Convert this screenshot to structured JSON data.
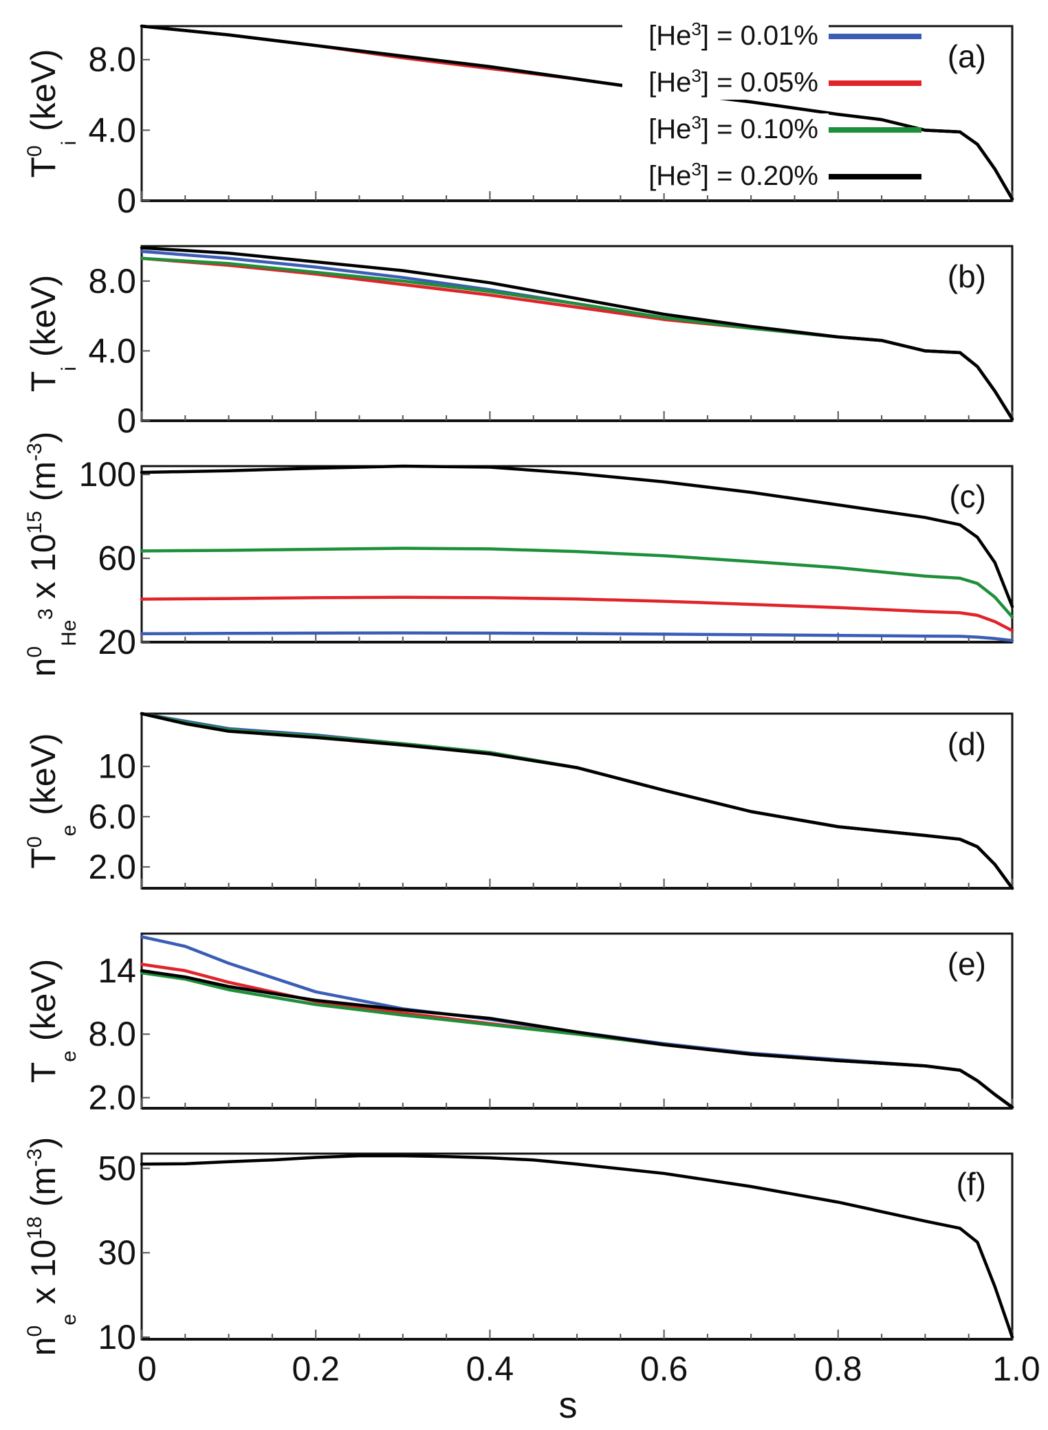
{
  "chart_data": [
    {
      "type": "line",
      "panel": "(a)",
      "ylim": [
        0,
        9.9
      ],
      "xlim": [
        0,
        1
      ],
      "yticks": [
        "0",
        "4.0",
        "8.0"
      ],
      "ytick_values": [
        0,
        4,
        8
      ],
      "ylabel": {
        "main": "T",
        "sup": "0",
        "sub": "i",
        "unit": " (keV)"
      },
      "series": [
        {
          "name": "[He3] = 0.01%",
          "color": "#3b5db5",
          "x": [
            0,
            0.1,
            0.2,
            0.3,
            0.4,
            0.5,
            0.6,
            0.7,
            0.8,
            0.85,
            0.9,
            0.94,
            0.96,
            0.98,
            1.0
          ],
          "y": [
            9.9,
            9.4,
            8.8,
            8.2,
            7.6,
            6.9,
            6.2,
            5.6,
            4.9,
            4.6,
            4.0,
            3.9,
            3.2,
            1.8,
            0.1
          ]
        },
        {
          "name": "[He3] = 0.05%",
          "color": "#e0242a",
          "x": [
            0,
            0.1,
            0.2,
            0.3,
            0.4,
            0.5,
            0.6,
            0.7,
            0.8,
            0.85,
            0.9,
            0.94,
            0.96,
            0.98,
            1.0
          ],
          "y": [
            9.9,
            9.4,
            8.8,
            8.1,
            7.5,
            6.9,
            6.2,
            5.6,
            4.9,
            4.6,
            4.0,
            3.9,
            3.2,
            1.8,
            0.1
          ]
        },
        {
          "name": "[He3] = 0.10%",
          "color": "#1e8f3a",
          "x": [
            0,
            0.1,
            0.2,
            0.3,
            0.4,
            0.5,
            0.6,
            0.7,
            0.8,
            0.85,
            0.9,
            0.94,
            0.96,
            0.98,
            1.0
          ],
          "y": [
            9.9,
            9.4,
            8.8,
            8.2,
            7.6,
            6.9,
            6.2,
            5.6,
            4.9,
            4.6,
            4.0,
            3.9,
            3.2,
            1.8,
            0.1
          ]
        },
        {
          "name": "[He3] = 0.20%",
          "color": "#000000",
          "x": [
            0,
            0.1,
            0.2,
            0.3,
            0.4,
            0.5,
            0.6,
            0.7,
            0.8,
            0.85,
            0.9,
            0.94,
            0.96,
            0.98,
            1.0
          ],
          "y": [
            9.9,
            9.4,
            8.8,
            8.2,
            7.6,
            6.9,
            6.2,
            5.6,
            4.9,
            4.6,
            4.0,
            3.9,
            3.2,
            1.8,
            0.1
          ]
        }
      ]
    },
    {
      "type": "line",
      "panel": "(b)",
      "ylim": [
        0,
        10.0
      ],
      "xlim": [
        0,
        1
      ],
      "yticks": [
        "0",
        "4.0",
        "8.0"
      ],
      "ytick_values": [
        0,
        4,
        8
      ],
      "ylabel": {
        "main": "T",
        "sup": "",
        "sub": "i",
        "unit": " (keV)"
      },
      "series": [
        {
          "name": "[He3] = 0.01%",
          "color": "#3b5db5",
          "x": [
            0,
            0.1,
            0.2,
            0.3,
            0.4,
            0.5,
            0.6,
            0.7,
            0.8,
            0.85,
            0.9,
            0.94,
            0.96,
            0.98,
            1.0
          ],
          "y": [
            9.7,
            9.3,
            8.8,
            8.2,
            7.5,
            6.7,
            5.9,
            5.3,
            4.8,
            4.6,
            4.0,
            3.9,
            3.1,
            1.7,
            0.1
          ]
        },
        {
          "name": "[He3] = 0.05%",
          "color": "#e0242a",
          "x": [
            0,
            0.1,
            0.2,
            0.3,
            0.4,
            0.5,
            0.6,
            0.7,
            0.8,
            0.85,
            0.9,
            0.94,
            0.96,
            0.98,
            1.0
          ],
          "y": [
            9.3,
            8.9,
            8.4,
            7.8,
            7.2,
            6.5,
            5.8,
            5.3,
            4.8,
            4.6,
            4.0,
            3.9,
            3.1,
            1.7,
            0.1
          ]
        },
        {
          "name": "[He3] = 0.10%",
          "color": "#1e8f3a",
          "x": [
            0,
            0.1,
            0.2,
            0.3,
            0.4,
            0.5,
            0.6,
            0.7,
            0.8,
            0.85,
            0.9,
            0.94,
            0.96,
            0.98,
            1.0
          ],
          "y": [
            9.3,
            9.0,
            8.5,
            8.0,
            7.4,
            6.7,
            5.9,
            5.3,
            4.8,
            4.6,
            4.0,
            3.9,
            3.1,
            1.7,
            0.1
          ]
        },
        {
          "name": "[He3] = 0.20%",
          "color": "#000000",
          "x": [
            0,
            0.1,
            0.2,
            0.3,
            0.4,
            0.5,
            0.6,
            0.7,
            0.8,
            0.85,
            0.9,
            0.94,
            0.96,
            0.98,
            1.0
          ],
          "y": [
            9.9,
            9.6,
            9.1,
            8.6,
            7.9,
            7.0,
            6.1,
            5.4,
            4.8,
            4.6,
            4.0,
            3.9,
            3.1,
            1.7,
            0.1
          ]
        }
      ]
    },
    {
      "type": "line",
      "panel": "(c)",
      "ylim": [
        20,
        104
      ],
      "xlim": [
        0,
        1
      ],
      "yticks": [
        "20",
        "60",
        "100"
      ],
      "ytick_values": [
        20,
        60,
        100
      ],
      "ylabel": {
        "main": "n",
        "sup": "0",
        "sub": "He",
        "extra_sup": "3",
        "tail": " x 10",
        "tail_sup": "15",
        "unit": " (m",
        "unit_sup": "-3",
        "unit_end": ")"
      },
      "series": [
        {
          "name": "[He3] = 0.01%",
          "color": "#3b5db5",
          "x": [
            0,
            0.1,
            0.2,
            0.3,
            0.4,
            0.5,
            0.6,
            0.7,
            0.8,
            0.9,
            0.94,
            0.96,
            0.98,
            1.0
          ],
          "y": [
            24,
            24.2,
            24.3,
            24.4,
            24.3,
            24.1,
            23.8,
            23.5,
            23.2,
            22.9,
            22.8,
            22.4,
            21.7,
            20.8
          ]
        },
        {
          "name": "[He3] = 0.05%",
          "color": "#e0242a",
          "x": [
            0,
            0.1,
            0.2,
            0.3,
            0.4,
            0.5,
            0.6,
            0.7,
            0.8,
            0.9,
            0.94,
            0.96,
            0.98,
            1.0
          ],
          "y": [
            40.5,
            40.8,
            41.2,
            41.4,
            41.2,
            40.6,
            39.5,
            38.0,
            36.5,
            34.6,
            34.0,
            32.8,
            29.8,
            25.5
          ]
        },
        {
          "name": "[He3] = 0.10%",
          "color": "#1e8f3a",
          "x": [
            0,
            0.1,
            0.2,
            0.3,
            0.4,
            0.5,
            0.6,
            0.7,
            0.8,
            0.9,
            0.94,
            0.96,
            0.98,
            1.0
          ],
          "y": [
            63.5,
            63.8,
            64.3,
            64.8,
            64.5,
            63.2,
            61.2,
            58.5,
            55.5,
            51.5,
            50.5,
            48.0,
            41.5,
            32.0
          ]
        },
        {
          "name": "[He3] = 0.20%",
          "color": "#000000",
          "x": [
            0,
            0.1,
            0.2,
            0.3,
            0.4,
            0.5,
            0.6,
            0.7,
            0.8,
            0.9,
            0.94,
            0.96,
            0.98,
            1.0
          ],
          "y": [
            101,
            101.8,
            103,
            104,
            103.5,
            100.5,
            96.5,
            91.5,
            85.5,
            79.5,
            76.0,
            70.0,
            58.0,
            37.0
          ]
        }
      ]
    },
    {
      "type": "line",
      "panel": "(d)",
      "ylim": [
        0.3,
        14.2
      ],
      "xlim": [
        0,
        1
      ],
      "yticks": [
        "2.0",
        "6.0",
        "10"
      ],
      "ytick_values": [
        2,
        6,
        10
      ],
      "ylabel": {
        "main": "T",
        "sup": "0",
        "sub": "e",
        "unit": " (keV)"
      },
      "series": [
        {
          "name": "[He3] = 0.01%",
          "color": "#3b5db5",
          "x": [
            0,
            0.05,
            0.1,
            0.2,
            0.3,
            0.4,
            0.5,
            0.6,
            0.7,
            0.8,
            0.9,
            0.94,
            0.96,
            0.98,
            1.0
          ],
          "y": [
            14.2,
            13.6,
            13.0,
            12.5,
            11.8,
            11.1,
            9.9,
            8.1,
            6.4,
            5.2,
            4.5,
            4.2,
            3.6,
            2.2,
            0.3
          ]
        },
        {
          "name": "[He3] = 0.05%",
          "color": "#e0242a",
          "x": [
            0,
            0.05,
            0.1,
            0.2,
            0.3,
            0.4,
            0.5,
            0.6,
            0.7,
            0.8,
            0.9,
            0.94,
            0.96,
            0.98,
            1.0
          ],
          "y": [
            14.2,
            13.5,
            12.9,
            12.4,
            11.8,
            11.1,
            9.9,
            8.1,
            6.4,
            5.2,
            4.5,
            4.2,
            3.6,
            2.2,
            0.3
          ]
        },
        {
          "name": "[He3] = 0.10%",
          "color": "#1e8f3a",
          "x": [
            0,
            0.05,
            0.1,
            0.2,
            0.3,
            0.4,
            0.5,
            0.6,
            0.7,
            0.8,
            0.9,
            0.94,
            0.96,
            0.98,
            1.0
          ],
          "y": [
            14.2,
            13.5,
            12.9,
            12.4,
            11.8,
            11.1,
            9.9,
            8.1,
            6.4,
            5.2,
            4.5,
            4.2,
            3.6,
            2.2,
            0.3
          ]
        },
        {
          "name": "[He3] = 0.20%",
          "color": "#000000",
          "x": [
            0,
            0.05,
            0.1,
            0.2,
            0.3,
            0.4,
            0.5,
            0.6,
            0.7,
            0.8,
            0.9,
            0.94,
            0.96,
            0.98,
            1.0
          ],
          "y": [
            14.2,
            13.4,
            12.8,
            12.3,
            11.7,
            11.0,
            9.9,
            8.1,
            6.4,
            5.2,
            4.5,
            4.2,
            3.6,
            2.2,
            0.3
          ]
        }
      ]
    },
    {
      "type": "line",
      "panel": "(e)",
      "ylim": [
        1.0,
        17.5
      ],
      "xlim": [
        0,
        1
      ],
      "yticks": [
        "2.0",
        "8.0",
        "14"
      ],
      "ytick_values": [
        2,
        8,
        14
      ],
      "ylabel": {
        "main": "T",
        "sup": "",
        "sub": "e",
        "unit": " (keV)"
      },
      "series": [
        {
          "name": "[He3] = 0.01%",
          "color": "#3b5db5",
          "x": [
            0,
            0.05,
            0.1,
            0.2,
            0.3,
            0.4,
            0.5,
            0.6,
            0.7,
            0.8,
            0.9,
            0.94,
            0.96,
            0.98,
            1.0
          ],
          "y": [
            17.2,
            16.3,
            14.7,
            12.0,
            10.4,
            9.4,
            8.2,
            7.1,
            6.2,
            5.6,
            5.0,
            4.6,
            3.6,
            2.3,
            1.1
          ]
        },
        {
          "name": "[He3] = 0.05%",
          "color": "#e0242a",
          "x": [
            0,
            0.05,
            0.1,
            0.2,
            0.3,
            0.4,
            0.5,
            0.6,
            0.7,
            0.8,
            0.9,
            0.94,
            0.96,
            0.98,
            1.0
          ],
          "y": [
            14.6,
            14.0,
            12.9,
            11.1,
            10.0,
            9.0,
            8.0,
            7.0,
            6.1,
            5.5,
            5.0,
            4.6,
            3.6,
            2.3,
            1.1
          ]
        },
        {
          "name": "[He3] = 0.10%",
          "color": "#1e8f3a",
          "x": [
            0,
            0.05,
            0.1,
            0.2,
            0.3,
            0.4,
            0.5,
            0.6,
            0.7,
            0.8,
            0.9,
            0.94,
            0.96,
            0.98,
            1.0
          ],
          "y": [
            13.8,
            13.2,
            12.2,
            10.8,
            9.8,
            8.9,
            8.0,
            7.0,
            6.1,
            5.5,
            5.0,
            4.6,
            3.6,
            2.3,
            1.1
          ]
        },
        {
          "name": "[He3] = 0.20%",
          "color": "#000000",
          "x": [
            0,
            0.05,
            0.1,
            0.2,
            0.3,
            0.4,
            0.5,
            0.6,
            0.7,
            0.8,
            0.9,
            0.94,
            0.96,
            0.98,
            1.0
          ],
          "y": [
            14.0,
            13.4,
            12.5,
            11.2,
            10.3,
            9.5,
            8.2,
            7.0,
            6.1,
            5.5,
            5.0,
            4.6,
            3.6,
            2.3,
            1.1
          ]
        }
      ]
    },
    {
      "type": "line",
      "panel": "(f)",
      "ylim": [
        9.5,
        53.5
      ],
      "xlim": [
        0,
        1
      ],
      "yticks": [
        "10",
        "30",
        "50"
      ],
      "ytick_values": [
        10,
        30,
        50
      ],
      "ylabel": {
        "main": "n",
        "sup": "0",
        "sub": "e",
        "tail": " x 10",
        "tail_sup": "18",
        "unit": " (m",
        "unit_sup": "-3",
        "unit_end": ")"
      },
      "series": [
        {
          "name": "[He3] = 0.20%",
          "color": "#000000",
          "x": [
            0,
            0.05,
            0.1,
            0.15,
            0.2,
            0.25,
            0.3,
            0.35,
            0.4,
            0.45,
            0.5,
            0.6,
            0.7,
            0.8,
            0.9,
            0.94,
            0.96,
            0.98,
            1.0
          ],
          "y": [
            51.0,
            51.1,
            51.6,
            52.0,
            52.6,
            53.0,
            53.0,
            52.8,
            52.5,
            52.0,
            51.0,
            48.8,
            45.7,
            42.0,
            37.5,
            35.8,
            32.5,
            22.0,
            10.0
          ]
        }
      ]
    }
  ],
  "legend": {
    "entries": [
      {
        "label": "[He",
        "sup": "3",
        "rest": "] = 0.01%",
        "color": "#3b5db5"
      },
      {
        "label": "[He",
        "sup": "3",
        "rest": "] = 0.05%",
        "color": "#e0242a"
      },
      {
        "label": "[He",
        "sup": "3",
        "rest": "] = 0.10%",
        "color": "#1e8f3a"
      },
      {
        "label": "[He",
        "sup": "3",
        "rest": "] = 0.20%",
        "color": "#000000"
      }
    ]
  },
  "xaxis": {
    "label": "s",
    "ticks": [
      "0",
      "0.2",
      "0.4",
      "0.6",
      "0.8",
      "1.0"
    ],
    "tick_values": [
      0,
      0.2,
      0.4,
      0.6,
      0.8,
      1.0
    ]
  }
}
